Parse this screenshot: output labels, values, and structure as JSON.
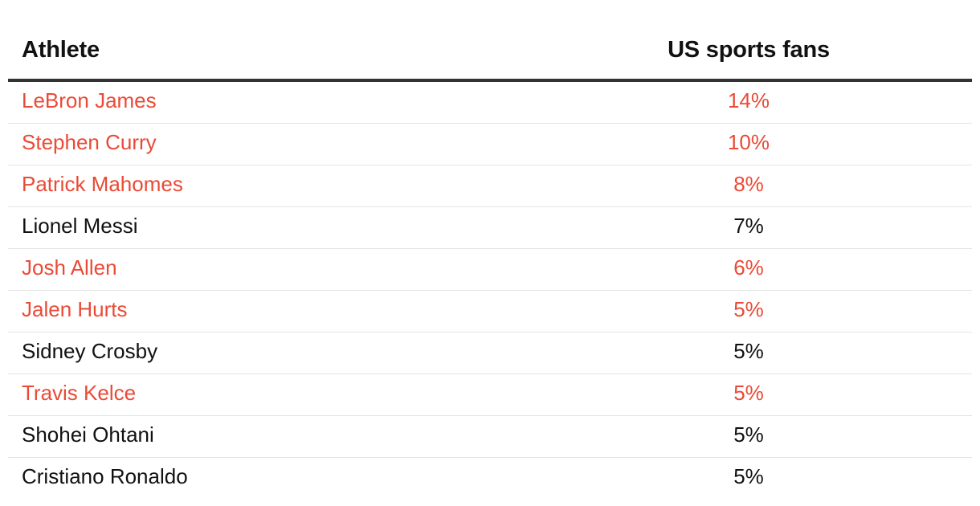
{
  "chart_data": {
    "type": "table",
    "columns": [
      "Athlete",
      "US sports fans"
    ],
    "highlight_color": "#ea4a36",
    "text_color": "#111111",
    "rows": [
      {
        "athlete": "LeBron James",
        "value": "14%",
        "highlighted": true
      },
      {
        "athlete": "Stephen Curry",
        "value": "10%",
        "highlighted": true
      },
      {
        "athlete": "Patrick Mahomes",
        "value": "8%",
        "highlighted": true
      },
      {
        "athlete": "Lionel Messi",
        "value": "7%",
        "highlighted": false
      },
      {
        "athlete": "Josh Allen",
        "value": "6%",
        "highlighted": true
      },
      {
        "athlete": "Jalen Hurts",
        "value": "5%",
        "highlighted": true
      },
      {
        "athlete": "Sidney Crosby",
        "value": "5%",
        "highlighted": false
      },
      {
        "athlete": "Travis Kelce",
        "value": "5%",
        "highlighted": true
      },
      {
        "athlete": "Shohei Ohtani",
        "value": "5%",
        "highlighted": false
      },
      {
        "athlete": "Cristiano Ronaldo",
        "value": "5%",
        "highlighted": false
      }
    ]
  }
}
